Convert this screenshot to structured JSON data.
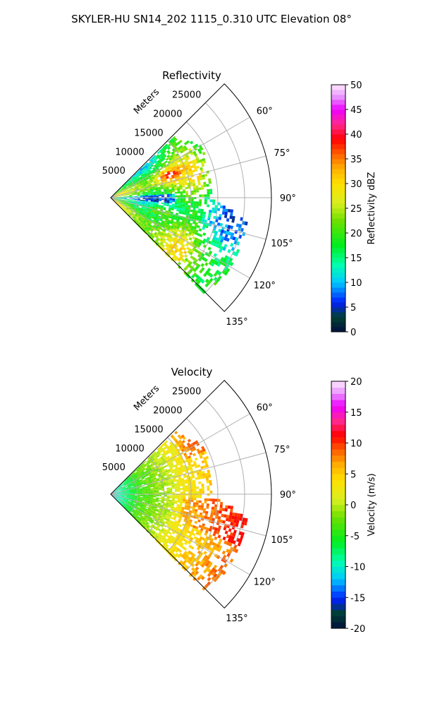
{
  "figure": {
    "suptitle": "SKYLER-HU  SN14_202  1115_0.310 UTC Elevation 08°"
  },
  "chart_data": [
    {
      "type": "heatmap",
      "subtype": "polar-sector-ppi",
      "title": "Reflectivity",
      "radial_axis_label": "Meters",
      "radial_ticks": [
        "5000",
        "10000",
        "15000",
        "20000",
        "25000"
      ],
      "radial_range": [
        0,
        30000
      ],
      "angular_ticks": [
        "60°",
        "75°",
        "90°",
        "105°",
        "120°",
        "135°"
      ],
      "angular_range_deg": [
        45,
        135
      ],
      "grid": true,
      "colorbar": {
        "label": "Reflectivity dBZ",
        "min": 0,
        "max": 50,
        "ticks": [
          "0",
          "5",
          "10",
          "15",
          "20",
          "25",
          "30",
          "35",
          "40",
          "45",
          "50"
        ],
        "levels": 50
      },
      "field_description": "mostly 15-30 dBZ echoes, cores near 33-37 dBZ at 8-13 km range around 65-75° and 100-110°",
      "data_max_range_by_azimuth": [
        {
          "az": 50,
          "range": 17000
        },
        {
          "az": 60,
          "range": 19500
        },
        {
          "az": 70,
          "range": 19000
        },
        {
          "az": 80,
          "range": 19000
        },
        {
          "az": 90,
          "range": 18500
        },
        {
          "az": 100,
          "range": 26000
        },
        {
          "az": 110,
          "range": 26000
        },
        {
          "az": 120,
          "range": 26000
        },
        {
          "az": 130,
          "range": 25000
        }
      ]
    },
    {
      "type": "heatmap",
      "subtype": "polar-sector-ppi",
      "title": "Velocity",
      "radial_axis_label": "Meters",
      "radial_ticks": [
        "5000",
        "10000",
        "15000",
        "20000",
        "25000"
      ],
      "radial_range": [
        0,
        30000
      ],
      "angular_ticks": [
        "60°",
        "75°",
        "90°",
        "105°",
        "120°",
        "135°"
      ],
      "angular_range_deg": [
        45,
        135
      ],
      "grid": true,
      "colorbar": {
        "label": "Velocity (m/s)",
        "min": -20,
        "max": 20,
        "ticks": [
          "-20",
          "-15",
          "-10",
          "-5",
          "0",
          "5",
          "10",
          "15",
          "20"
        ],
        "levels": 40
      },
      "field_description": "near-range -10 to -5 m/s, mid range 0 to 5 m/s, far range 6 to 10 m/s especially around 95-110°",
      "data_max_range_by_azimuth": [
        {
          "az": 50,
          "range": 17000
        },
        {
          "az": 60,
          "range": 19500
        },
        {
          "az": 70,
          "range": 19000
        },
        {
          "az": 80,
          "range": 19000
        },
        {
          "az": 90,
          "range": 18500
        },
        {
          "az": 100,
          "range": 26000
        },
        {
          "az": 110,
          "range": 26000
        },
        {
          "az": 120,
          "range": 26000
        },
        {
          "az": 130,
          "range": 25000
        }
      ]
    }
  ]
}
